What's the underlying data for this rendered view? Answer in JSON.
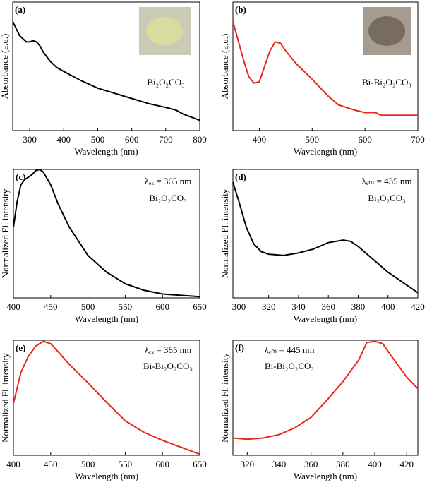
{
  "chart_data": [
    {
      "type": "line",
      "panel_label": "(a)",
      "annotations": [
        "Bi₂O₂CO₃"
      ],
      "xlabel": "Wavelength (nm)",
      "ylabel": "Absorbance (a.u.)",
      "color": "#000000",
      "x": [
        250,
        270,
        290,
        300,
        310,
        320,
        330,
        340,
        360,
        380,
        400,
        450,
        500,
        550,
        600,
        650,
        700,
        730,
        750,
        800
      ],
      "values": [
        0.85,
        0.74,
        0.69,
        0.69,
        0.7,
        0.69,
        0.66,
        0.61,
        0.54,
        0.49,
        0.46,
        0.39,
        0.33,
        0.29,
        0.25,
        0.21,
        0.18,
        0.16,
        0.13,
        0.08
      ],
      "xlim": [
        250,
        800
      ],
      "xticks": [
        300,
        400,
        500,
        600,
        700,
        800
      ],
      "ylim": [
        0,
        1
      ]
    },
    {
      "type": "line",
      "panel_label": "(b)",
      "annotations": [
        "Bi-Bi₂O₂CO₃"
      ],
      "xlabel": "Wavelength (nm)",
      "ylabel": "Absorbance (a.u.)",
      "color": "#e8281e",
      "x": [
        350,
        360,
        370,
        380,
        390,
        400,
        410,
        420,
        430,
        440,
        450,
        470,
        500,
        530,
        550,
        580,
        600,
        620,
        630,
        650,
        700
      ],
      "values": [
        0.85,
        0.7,
        0.55,
        0.42,
        0.37,
        0.38,
        0.5,
        0.62,
        0.69,
        0.68,
        0.62,
        0.52,
        0.4,
        0.27,
        0.2,
        0.16,
        0.14,
        0.14,
        0.12,
        0.12,
        0.12
      ],
      "xlim": [
        350,
        700
      ],
      "xticks": [
        400,
        500,
        600,
        700
      ],
      "ylim": [
        0,
        1
      ]
    },
    {
      "type": "line",
      "panel_label": "(c)",
      "annotations": [
        "λₑₓ = 365 nm",
        "Bi₂O₂CO₃"
      ],
      "xlabel": "Wavelength (nm)",
      "ylabel": "Normalized Fl. intensity",
      "color": "#000000",
      "x": [
        400,
        405,
        410,
        415,
        420,
        425,
        430,
        435,
        440,
        450,
        460,
        475,
        500,
        525,
        550,
        575,
        600,
        625,
        650
      ],
      "values": [
        0.55,
        0.75,
        0.88,
        0.92,
        0.94,
        0.96,
        0.99,
        1.0,
        0.98,
        0.88,
        0.73,
        0.55,
        0.33,
        0.2,
        0.11,
        0.06,
        0.03,
        0.02,
        0.01
      ],
      "xlim": [
        400,
        650
      ],
      "xticks": [
        400,
        450,
        500,
        550,
        600,
        650
      ],
      "ylim": [
        0,
        1
      ]
    },
    {
      "type": "line",
      "panel_label": "(d)",
      "annotations": [
        "λₑₘ = 435 nm",
        "Bi₂O₂CO₃"
      ],
      "xlabel": "Wavelength (nm)",
      "ylabel": "Normalized Fl. intensity",
      "color": "#000000",
      "x": [
        296,
        300,
        305,
        310,
        315,
        320,
        330,
        340,
        350,
        360,
        370,
        375,
        380,
        390,
        400,
        410,
        420
      ],
      "values": [
        0.9,
        0.75,
        0.55,
        0.42,
        0.36,
        0.34,
        0.33,
        0.35,
        0.38,
        0.43,
        0.45,
        0.44,
        0.4,
        0.3,
        0.2,
        0.12,
        0.04
      ],
      "xlim": [
        296,
        420
      ],
      "xticks": [
        300,
        320,
        340,
        360,
        380,
        400,
        420
      ],
      "ylim": [
        0,
        1
      ]
    },
    {
      "type": "line",
      "panel_label": "(e)",
      "annotations": [
        "λₑₓ = 365 nm",
        "Bi-Bi₂O₂CO₃"
      ],
      "xlabel": "Wavelength (nm)",
      "ylabel": "Normalized Fl. intensity",
      "color": "#e8281e",
      "x": [
        400,
        410,
        420,
        430,
        440,
        450,
        460,
        475,
        500,
        525,
        550,
        575,
        600,
        625,
        650
      ],
      "values": [
        0.45,
        0.72,
        0.86,
        0.95,
        0.99,
        0.97,
        0.9,
        0.79,
        0.63,
        0.46,
        0.3,
        0.2,
        0.13,
        0.07,
        0.01
      ],
      "xlim": [
        400,
        650
      ],
      "xticks": [
        400,
        450,
        500,
        550,
        600,
        650
      ],
      "ylim": [
        0,
        1
      ]
    },
    {
      "type": "line",
      "panel_label": "(f)",
      "annotations": [
        "λₑₘ = 445 nm",
        "Bi-Bi₂O₂CO₃"
      ],
      "xlabel": "Wavelength (nm)",
      "ylabel": "Normalized Fl. intensity",
      "color": "#e8281e",
      "x": [
        311,
        320,
        330,
        340,
        350,
        360,
        370,
        380,
        390,
        395,
        400,
        405,
        410,
        420,
        427
      ],
      "values": [
        0.15,
        0.14,
        0.15,
        0.18,
        0.24,
        0.33,
        0.48,
        0.64,
        0.83,
        0.98,
        0.99,
        0.97,
        0.87,
        0.68,
        0.58
      ],
      "xlim": [
        311,
        427
      ],
      "xticks": [
        320,
        340,
        360,
        380,
        400,
        420
      ],
      "ylim": [
        0,
        1
      ]
    }
  ]
}
